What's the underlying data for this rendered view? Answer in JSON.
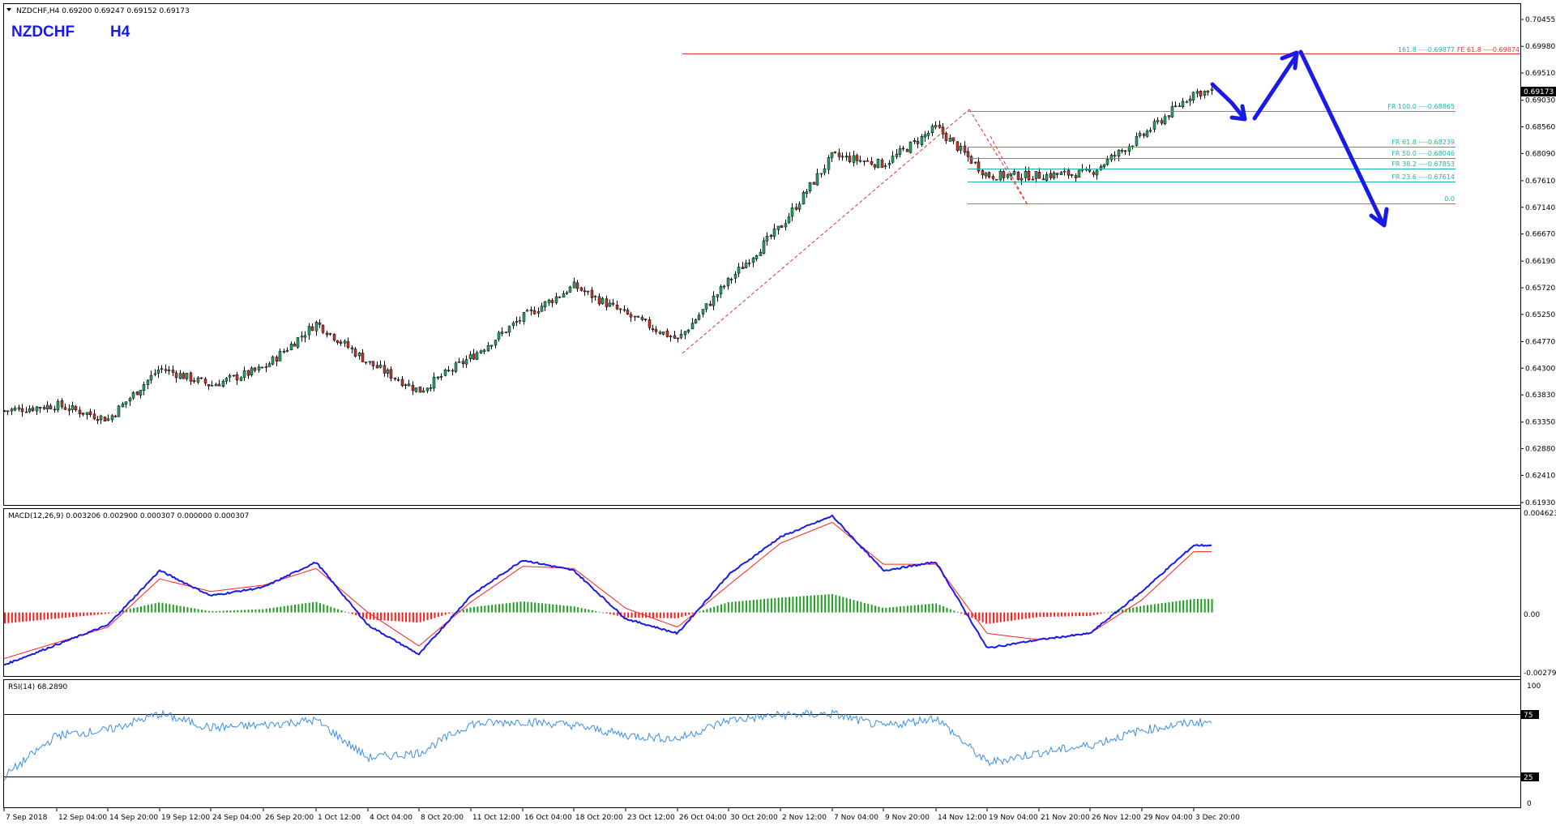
{
  "chart_header": {
    "info": "NZDCHF,H4  0.69200 0.69247 0.69152 0.69173",
    "symbol": "NZDCHF",
    "timeframe": "H4"
  },
  "current_price": "0.69173",
  "price_axis_labels": [
    "0.70455",
    "0.69980",
    "0.69510",
    "0.69030",
    "0.68560",
    "0.68090",
    "0.67610",
    "0.67140",
    "0.66670",
    "0.66190",
    "0.65720",
    "0.65250",
    "0.64770",
    "0.64300",
    "0.63830",
    "0.63350",
    "0.62880",
    "0.62410",
    "0.61930"
  ],
  "fib_labels": {
    "fe_161": "161.8 ----0.69877",
    "fe_618": "FE 61.8 ----0.69874",
    "fr_100": "FR 100.0 ----0.68865",
    "fr_618": "FR 61.8 ----0.68239",
    "fr_50": "FR 50.0 ----0.68046",
    "fr_382": "FR 38.2 ----0.67853",
    "fr_236": "FR 23.6 ----0.67614",
    "fr_0": "0.0"
  },
  "macd": {
    "label": "MACD(12,26,9) 0.003206 0.002900 0.000307 0.000000 0.000307",
    "axis_labels": [
      "0.004623",
      "0.00",
      "-0.002798"
    ]
  },
  "rsi": {
    "label": "RSI(14) 68.2890",
    "axis_labels": [
      "100",
      "75",
      "25",
      "0"
    ]
  },
  "time_labels": [
    "7 Sep 2018",
    "12 Sep 04:00",
    "14 Sep 20:00",
    "19 Sep 12:00",
    "24 Sep 04:00",
    "26 Sep 20:00",
    "1 Oct 12:00",
    "4 Oct 04:00",
    "8 Oct 20:00",
    "11 Oct 12:00",
    "16 Oct 04:00",
    "18 Oct 20:00",
    "23 Oct 12:00",
    "26 Oct 04:00",
    "30 Oct 20:00",
    "2 Nov 12:00",
    "7 Nov 04:00",
    "9 Nov 20:00",
    "14 Nov 12:00",
    "19 Nov 04:00",
    "21 Nov 20:00",
    "26 Nov 12:00",
    "29 Nov 04:00",
    "3 Dec 20:00"
  ],
  "chart_data": {
    "type": "candlestick",
    "symbol": "NZDCHF",
    "timeframe": "H4",
    "ohlc_last": {
      "open": 0.692,
      "high": 0.69247,
      "low": 0.69152,
      "close": 0.69173
    },
    "ylim": [
      0.6193,
      0.7046
    ],
    "close_path": [
      [
        "7 Sep 2018",
        0.6355
      ],
      [
        "12 Sep 04:00",
        0.6365
      ],
      [
        "14 Sep 20:00",
        0.634
      ],
      [
        "19 Sep 12:00",
        0.643
      ],
      [
        "24 Sep 04:00",
        0.64
      ],
      [
        "26 Sep 20:00",
        0.643
      ],
      [
        "1 Oct 12:00",
        0.651
      ],
      [
        "4 Oct 04:00",
        0.644
      ],
      [
        "8 Oct 20:00",
        0.639
      ],
      [
        "11 Oct 12:00",
        0.645
      ],
      [
        "16 Oct 04:00",
        0.652
      ],
      [
        "18 Oct 20:00",
        0.6575
      ],
      [
        "23 Oct 12:00",
        0.6525
      ],
      [
        "26 Oct 04:00",
        0.648
      ],
      [
        "30 Oct 20:00",
        0.6585
      ],
      [
        "2 Nov 12:00",
        0.668
      ],
      [
        "7 Nov 04:00",
        0.6805
      ],
      [
        "9 Nov 20:00",
        0.679
      ],
      [
        "14 Nov 12:00",
        0.6855
      ],
      [
        "19 Nov 04:00",
        0.677
      ],
      [
        "21 Nov 20:00",
        0.677
      ],
      [
        "26 Nov 12:00",
        0.6775
      ],
      [
        "29 Nov 04:00",
        0.684
      ],
      [
        "3 Dec 20:00",
        0.6917
      ]
    ],
    "fibonacci": {
      "FE 61.8": 0.69874,
      "FR 100.0": 0.68865,
      "FR 61.8": 0.68239,
      "FR 50.0": 0.68046,
      "FR 38.2": 0.67853,
      "FR 23.6": 0.67614,
      "FR 0.0": 0.6724
    },
    "macd": {
      "params": "12,26,9",
      "main": [
        [
          "7 Sep 2018",
          -0.0025
        ],
        [
          "14 Sep 20:00",
          -0.0006
        ],
        [
          "19 Sep 12:00",
          0.002
        ],
        [
          "24 Sep 04:00",
          0.0008
        ],
        [
          "26 Sep 20:00",
          0.0012
        ],
        [
          "1 Oct 12:00",
          0.0024
        ],
        [
          "4 Oct 04:00",
          -0.0006
        ],
        [
          "8 Oct 20:00",
          -0.002
        ],
        [
          "11 Oct 12:00",
          0.0008
        ],
        [
          "16 Oct 04:00",
          0.0025
        ],
        [
          "18 Oct 20:00",
          0.002
        ],
        [
          "23 Oct 12:00",
          -0.0003
        ],
        [
          "26 Oct 04:00",
          -0.001
        ],
        [
          "30 Oct 20:00",
          0.0018
        ],
        [
          "2 Nov 12:00",
          0.0036
        ],
        [
          "7 Nov 04:00",
          0.0046
        ],
        [
          "9 Nov 20:00",
          0.002
        ],
        [
          "14 Nov 12:00",
          0.0024
        ],
        [
          "19 Nov 04:00",
          -0.0017
        ],
        [
          "21 Nov 20:00",
          -0.0013
        ],
        [
          "26 Nov 12:00",
          -0.001
        ],
        [
          "29 Nov 04:00",
          0.001
        ],
        [
          "3 Dec 20:00",
          0.0032
        ]
      ],
      "signal": [
        [
          "7 Sep 2018",
          -0.0022
        ],
        [
          "14 Sep 20:00",
          -0.0007
        ],
        [
          "19 Sep 12:00",
          0.0016
        ],
        [
          "24 Sep 04:00",
          0.001
        ],
        [
          "26 Sep 20:00",
          0.0013
        ],
        [
          "1 Oct 12:00",
          0.0021
        ],
        [
          "4 Oct 04:00",
          0.0
        ],
        [
          "8 Oct 20:00",
          -0.0016
        ],
        [
          "11 Oct 12:00",
          0.0005
        ],
        [
          "16 Oct 04:00",
          0.0022
        ],
        [
          "18 Oct 20:00",
          0.0021
        ],
        [
          "23 Oct 12:00",
          0.0002
        ],
        [
          "26 Oct 04:00",
          -0.0007
        ],
        [
          "30 Oct 20:00",
          0.0013
        ],
        [
          "2 Nov 12:00",
          0.0033
        ],
        [
          "7 Nov 04:00",
          0.0043
        ],
        [
          "9 Nov 20:00",
          0.0023
        ],
        [
          "14 Nov 12:00",
          0.0023
        ],
        [
          "19 Nov 04:00",
          -0.001
        ],
        [
          "21 Nov 20:00",
          -0.0013
        ],
        [
          "26 Nov 12:00",
          -0.001
        ],
        [
          "29 Nov 04:00",
          0.0006
        ],
        [
          "3 Dec 20:00",
          0.0029
        ]
      ],
      "ylim": [
        -0.002798,
        0.004623
      ]
    },
    "rsi": {
      "period": 14,
      "last": 68.289,
      "levels": [
        25,
        75
      ],
      "ylim": [
        0,
        100
      ],
      "values": [
        [
          "7 Sep 2018",
          25
        ],
        [
          "12 Sep 04:00",
          58
        ],
        [
          "14 Sep 20:00",
          62
        ],
        [
          "19 Sep 12:00",
          75
        ],
        [
          "24 Sep 04:00",
          64
        ],
        [
          "26 Sep 20:00",
          66
        ],
        [
          "1 Oct 12:00",
          70
        ],
        [
          "4 Oct 04:00",
          40
        ],
        [
          "8 Oct 20:00",
          44
        ],
        [
          "11 Oct 12:00",
          67
        ],
        [
          "16 Oct 04:00",
          69
        ],
        [
          "18 Oct 20:00",
          66
        ],
        [
          "23 Oct 12:00",
          58
        ],
        [
          "26 Oct 04:00",
          55
        ],
        [
          "30 Oct 20:00",
          70
        ],
        [
          "2 Nov 12:00",
          74
        ],
        [
          "7 Nov 04:00",
          75
        ],
        [
          "9 Nov 20:00",
          65
        ],
        [
          "14 Nov 12:00",
          72
        ],
        [
          "19 Nov 04:00",
          36
        ],
        [
          "21 Nov 20:00",
          44
        ],
        [
          "26 Nov 12:00",
          50
        ],
        [
          "29 Nov 04:00",
          62
        ],
        [
          "3 Dec 20:00",
          68.3
        ]
      ]
    },
    "forecast_path": [
      0.6915,
      0.688,
      0.6988,
      0.671
    ]
  },
  "colors": {
    "bull": "#26a269",
    "bear": "#c0392b",
    "fib": "#20b2aa",
    "fe_line": "#e03030",
    "macd_main": "#1a1ae6",
    "macd_signal": "#ff2020",
    "hist_pos": "#1e9e1e",
    "hist_neg": "#ff1a1a",
    "rsi": "#3d8fe0",
    "arrow": "#1a1ae6",
    "symbol_text": "#1a1ae6"
  }
}
